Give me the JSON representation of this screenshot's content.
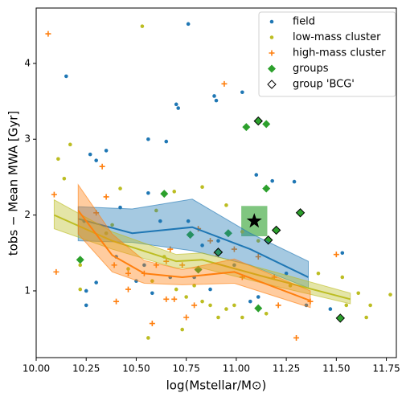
{
  "chart_data": {
    "type": "scatter",
    "xlabel": "log(Mstellar/M⊙)",
    "ylabel": "tobs − Mean MWA [Gyr]",
    "xlim": [
      10.0,
      11.8
    ],
    "ylim": [
      0.12,
      4.73
    ],
    "xticks": [
      {
        "value": 10.0,
        "label": "10.00"
      },
      {
        "value": 10.25,
        "label": "10.25"
      },
      {
        "value": 10.5,
        "label": "10.50"
      },
      {
        "value": 10.75,
        "label": "10.75"
      },
      {
        "value": 11.0,
        "label": "11.00"
      },
      {
        "value": 11.25,
        "label": "11.25"
      },
      {
        "value": 11.5,
        "label": "11.50"
      },
      {
        "value": 11.75,
        "label": "11.75"
      }
    ],
    "yticks": [
      1,
      2,
      3,
      4
    ],
    "legend": "upper right",
    "series": [
      {
        "name": "field",
        "color": "#1f77b4",
        "marker": "dot",
        "x": [
          10.15,
          10.76,
          10.7,
          10.71,
          10.89,
          10.9,
          11.03,
          10.27,
          10.35,
          10.3,
          10.56,
          10.65,
          11.18,
          11.29,
          11.1,
          10.42,
          10.56,
          10.24,
          10.62,
          10.76,
          10.91,
          10.83,
          10.4,
          10.54,
          10.67,
          10.79,
          10.25,
          10.3,
          10.5,
          10.99,
          11.11,
          11.25,
          11.35,
          11.47,
          11.53,
          10.25,
          11.07,
          10.58,
          10.87
        ],
        "values": [
          3.83,
          4.52,
          3.46,
          3.41,
          3.57,
          3.51,
          3.62,
          2.8,
          2.85,
          2.72,
          3.0,
          2.97,
          2.45,
          2.44,
          2.53,
          2.1,
          2.29,
          1.92,
          1.92,
          1.92,
          1.66,
          1.6,
          1.45,
          1.34,
          1.18,
          1.18,
          1.0,
          1.11,
          1.13,
          1.34,
          0.92,
          1.23,
          0.81,
          0.76,
          1.5,
          0.81,
          0.86,
          0.97,
          1.02
        ]
      },
      {
        "name": "low-mass cluster",
        "color": "#bcbd22",
        "marker": "dot",
        "x": [
          10.53,
          10.17,
          10.11,
          10.14,
          10.38,
          10.42,
          10.6,
          10.69,
          10.83,
          10.95,
          11.03,
          11.11,
          10.22,
          10.46,
          10.58,
          10.7,
          10.75,
          10.83,
          10.87,
          10.95,
          10.99,
          11.03,
          10.91,
          10.79,
          11.15,
          11.27,
          11.41,
          11.53,
          11.55,
          11.61,
          11.67,
          11.77,
          11.65,
          10.56,
          10.73,
          10.35,
          10.22,
          10.64
        ],
        "values": [
          4.49,
          2.93,
          2.74,
          2.48,
          1.87,
          2.35,
          2.06,
          2.31,
          2.37,
          2.13,
          1.78,
          1.66,
          1.34,
          1.29,
          1.13,
          1.02,
          0.92,
          0.86,
          0.81,
          0.76,
          0.81,
          0.65,
          0.65,
          1.07,
          0.7,
          1.07,
          1.23,
          1.18,
          0.81,
          0.97,
          0.81,
          0.95,
          0.65,
          0.38,
          0.49,
          1.76,
          1.02,
          1.45
        ]
      },
      {
        "name": "high-mass cluster",
        "color": "#ff7f0e",
        "marker": "plus",
        "x": [
          10.06,
          10.94,
          10.33,
          10.09,
          10.1,
          10.35,
          10.3,
          10.39,
          10.46,
          10.54,
          10.6,
          10.65,
          10.73,
          10.67,
          10.81,
          10.87,
          10.9,
          10.99,
          10.4,
          10.46,
          10.65,
          10.69,
          10.75,
          10.79,
          10.58,
          11.11,
          11.19,
          11.21,
          11.3,
          11.37,
          11.5,
          11.03
        ],
        "values": [
          4.39,
          3.73,
          2.64,
          2.27,
          1.25,
          2.24,
          2.03,
          1.34,
          1.23,
          1.23,
          1.34,
          1.39,
          1.34,
          1.55,
          1.82,
          1.66,
          1.5,
          1.55,
          0.86,
          1.02,
          0.89,
          0.89,
          0.65,
          0.81,
          0.57,
          1.45,
          1.18,
          0.81,
          0.38,
          0.86,
          1.48,
          1.18
        ]
      },
      {
        "name": "groups",
        "color": "#2ca02c",
        "marker": "diamond",
        "x": [
          10.64,
          10.22,
          10.77,
          10.96,
          11.05,
          11.15,
          11.15,
          10.81,
          11.11,
          11.11,
          11.32,
          11.2,
          11.16,
          10.91,
          11.52
        ],
        "values": [
          2.28,
          1.41,
          1.74,
          1.76,
          3.16,
          3.2,
          2.35,
          1.28,
          0.77,
          3.24,
          2.03,
          1.8,
          1.67,
          1.51,
          0.64
        ]
      },
      {
        "name": "group 'BCG'",
        "color": "#000000",
        "marker": "open-diamond",
        "x": [
          11.11,
          11.32,
          11.2,
          11.16,
          10.91,
          11.52
        ],
        "values": [
          3.24,
          2.03,
          1.8,
          1.67,
          1.51,
          0.64
        ]
      }
    ],
    "trends": [
      {
        "color": "#1f77b4",
        "x": [
          10.21,
          10.48,
          10.78,
          11.07,
          11.36
        ],
        "values": [
          1.95,
          1.76,
          1.84,
          1.55,
          1.18
        ],
        "lower": [
          1.66,
          1.64,
          1.53,
          1.34,
          1.04
        ],
        "upper": [
          2.11,
          2.08,
          2.21,
          1.76,
          1.39
        ]
      },
      {
        "color": "#bcbd22",
        "x": [
          10.09,
          10.38,
          10.7,
          10.83,
          11.15,
          11.57
        ],
        "values": [
          2.0,
          1.66,
          1.39,
          1.41,
          1.18,
          0.89
        ],
        "lower": [
          1.82,
          1.55,
          1.3,
          1.3,
          1.09,
          0.83
        ],
        "upper": [
          2.2,
          1.78,
          1.48,
          1.5,
          1.28,
          0.97
        ]
      },
      {
        "color": "#ff7f0e",
        "x": [
          10.21,
          10.38,
          10.54,
          10.73,
          10.99,
          11.37
        ],
        "values": [
          2.06,
          1.47,
          1.23,
          1.18,
          1.25,
          0.87
        ],
        "lower": [
          1.75,
          1.25,
          1.1,
          1.08,
          1.1,
          0.78
        ],
        "upper": [
          2.4,
          1.75,
          1.4,
          1.28,
          1.42,
          1.0
        ]
      }
    ],
    "highlight": {
      "color": "#2ca02c",
      "x": 11.09,
      "y": 1.92,
      "xerr": 0.065,
      "yerr": 0.2
    }
  }
}
